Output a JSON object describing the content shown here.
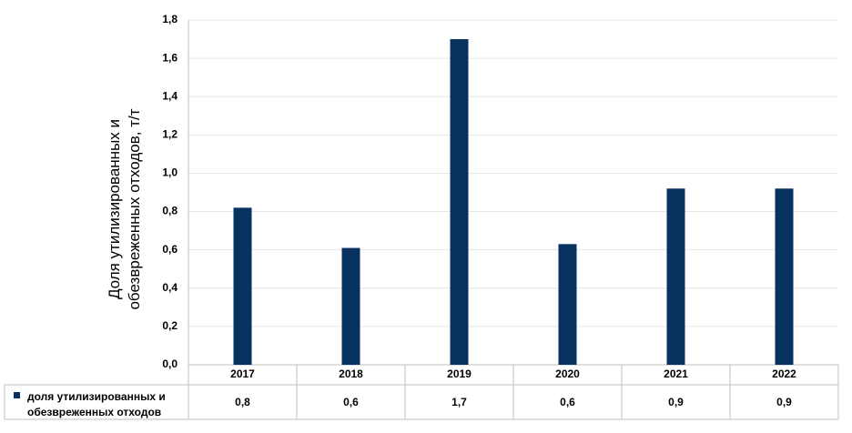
{
  "chart_data": {
    "type": "bar",
    "y_label": "Доля утилизированных и обезвреженных отходов, т/т",
    "categories": [
      "2017",
      "2018",
      "2019",
      "2020",
      "2021",
      "2022"
    ],
    "series": [
      {
        "name": "доля утилизированных и обезвреженных отходов",
        "color": "#07315f",
        "values": [
          0.82,
          0.61,
          1.7,
          0.63,
          0.92,
          0.92
        ],
        "value_labels": [
          "0,8",
          "0,6",
          "1,7",
          "0,6",
          "0,9",
          "0,9"
        ]
      }
    ],
    "ylim": [
      0,
      1.8
    ],
    "yticks": [
      {
        "value": 0,
        "label": "0,0"
      },
      {
        "value": 0.2,
        "label": "0,2"
      },
      {
        "value": 0.4,
        "label": "0,4"
      },
      {
        "value": 0.6,
        "label": "0,6"
      },
      {
        "value": 0.8,
        "label": "0,8"
      },
      {
        "value": 1.0,
        "label": "1,0"
      },
      {
        "value": 1.2,
        "label": "1,2"
      },
      {
        "value": 1.4,
        "label": "1,4"
      },
      {
        "value": 1.6,
        "label": "1,6"
      },
      {
        "value": 1.8,
        "label": "1,8"
      }
    ],
    "grid": true
  }
}
